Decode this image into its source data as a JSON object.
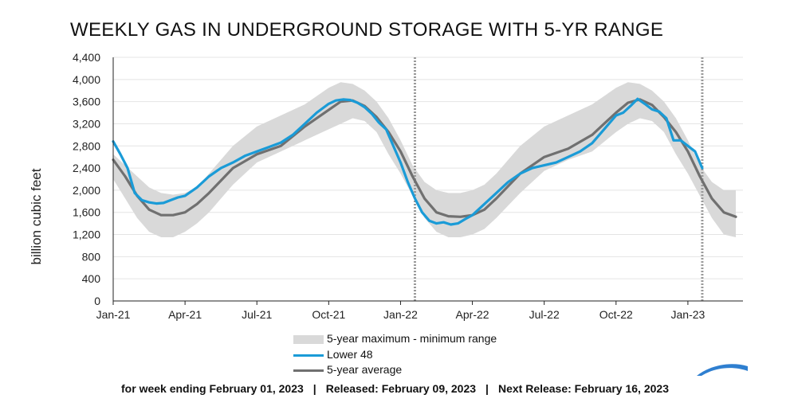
{
  "chart_data": {
    "type": "area+line",
    "title": "WEEKLY GAS IN UNDERGROUND STORAGE WITH 5-YR RANGE",
    "ylabel": "billion cubic feet",
    "ylim": [
      0,
      4400
    ],
    "yticks": [
      0,
      400,
      800,
      1200,
      1600,
      2000,
      2400,
      2800,
      3200,
      3600,
      4000,
      4400
    ],
    "ytick_labels": [
      "0",
      "400",
      "800",
      "1,200",
      "1,600",
      "2,000",
      "2,400",
      "2,800",
      "3,200",
      "3,600",
      "4,000",
      "4,400"
    ],
    "xlim_months": [
      0,
      26.3
    ],
    "xticks": [
      {
        "m": 0,
        "label": "Jan-21"
      },
      {
        "m": 3,
        "label": "Apr-21"
      },
      {
        "m": 6,
        "label": "Jul-21"
      },
      {
        "m": 9,
        "label": "Oct-21"
      },
      {
        "m": 12,
        "label": "Jan-22"
      },
      {
        "m": 15,
        "label": "Apr-22"
      },
      {
        "m": 18,
        "label": "Jul-22"
      },
      {
        "m": 21,
        "label": "Oct-22"
      },
      {
        "m": 24,
        "label": "Jan-23"
      }
    ],
    "vlines_months": [
      12.6,
      24.6
    ],
    "range_months": [
      0,
      0.5,
      1,
      1.5,
      2,
      2.5,
      3,
      3.5,
      4,
      5,
      6,
      7,
      8,
      9,
      9.5,
      10,
      10.5,
      11,
      11.5,
      12,
      12.5,
      13,
      13.5,
      14,
      14.5,
      15,
      15.5,
      16,
      17,
      18,
      19,
      20,
      21,
      21.5,
      22,
      22.5,
      23,
      23.5,
      24,
      24.5,
      25,
      25.5,
      26
    ],
    "range_max": [
      2650,
      2450,
      2250,
      2050,
      1950,
      1920,
      1950,
      2050,
      2300,
      2800,
      3150,
      3350,
      3550,
      3850,
      3950,
      3920,
      3800,
      3600,
      3300,
      2900,
      2450,
      2150,
      2000,
      1950,
      1950,
      2000,
      2100,
      2300,
      2800,
      3150,
      3350,
      3550,
      3850,
      3950,
      3920,
      3800,
      3600,
      3300,
      2900,
      2450,
      2150,
      2000,
      2000
    ],
    "range_min": [
      2200,
      1850,
      1500,
      1250,
      1150,
      1150,
      1250,
      1400,
      1600,
      2100,
      2500,
      2700,
      2900,
      3100,
      3200,
      3300,
      3250,
      3050,
      2650,
      2300,
      1900,
      1500,
      1250,
      1150,
      1150,
      1200,
      1300,
      1500,
      1950,
      2350,
      2550,
      2700,
      3050,
      3200,
      3300,
      3250,
      3050,
      2650,
      2300,
      1900,
      1500,
      1200,
      1150
    ],
    "series": [
      {
        "name": "Lower 48",
        "color": "#1a9bd7",
        "months": [
          0,
          0.3,
          0.6,
          0.9,
          1.2,
          1.5,
          1.8,
          2.1,
          2.4,
          2.7,
          3,
          3.5,
          4,
          4.5,
          5,
          5.5,
          6,
          6.5,
          7,
          7.5,
          8,
          8.5,
          9,
          9.3,
          9.6,
          9.9,
          10.2,
          10.5,
          10.8,
          11.1,
          11.4,
          11.7,
          12,
          12.3,
          12.6,
          12.9,
          13.2,
          13.5,
          13.8,
          14.1,
          14.4,
          14.7,
          15,
          15.5,
          16,
          16.5,
          17,
          17.5,
          18,
          18.5,
          19,
          19.5,
          20,
          20.5,
          21,
          21.3,
          21.6,
          21.9,
          22.2,
          22.5,
          22.8,
          23.1,
          23.4,
          23.7,
          24,
          24.3,
          24.6
        ],
        "values": [
          2880,
          2650,
          2400,
          1950,
          1820,
          1780,
          1760,
          1770,
          1820,
          1870,
          1900,
          2050,
          2250,
          2400,
          2500,
          2620,
          2700,
          2780,
          2860,
          3000,
          3200,
          3400,
          3560,
          3620,
          3640,
          3630,
          3580,
          3500,
          3380,
          3220,
          3100,
          2800,
          2500,
          2150,
          1850,
          1600,
          1450,
          1400,
          1420,
          1380,
          1400,
          1480,
          1550,
          1750,
          1950,
          2150,
          2300,
          2400,
          2450,
          2500,
          2600,
          2700,
          2850,
          3100,
          3350,
          3400,
          3520,
          3650,
          3560,
          3460,
          3420,
          3300,
          2900,
          2900,
          2800,
          2700,
          2400
        ]
      },
      {
        "name": "5-year average",
        "color": "#707070",
        "months": [
          0,
          0.5,
          1,
          1.5,
          2,
          2.5,
          3,
          3.5,
          4,
          5,
          6,
          7,
          8,
          9,
          9.5,
          10,
          10.5,
          11,
          11.5,
          12,
          12.5,
          13,
          13.5,
          14,
          14.5,
          15,
          15.5,
          16,
          17,
          18,
          19,
          20,
          21,
          21.5,
          22,
          22.5,
          23,
          23.5,
          24,
          24.5,
          25,
          25.5,
          26
        ],
        "values": [
          2550,
          2250,
          1900,
          1650,
          1550,
          1550,
          1600,
          1750,
          1950,
          2400,
          2650,
          2800,
          3150,
          3450,
          3600,
          3620,
          3520,
          3320,
          3050,
          2700,
          2250,
          1850,
          1600,
          1530,
          1520,
          1550,
          1650,
          1850,
          2300,
          2600,
          2750,
          3000,
          3400,
          3580,
          3640,
          3540,
          3320,
          3050,
          2700,
          2250,
          1850,
          1600,
          1520
        ]
      }
    ],
    "range_name": "5-year maximum - minimum range",
    "range_color": "#d9d9d9"
  },
  "legend": {
    "range_label": "5-year maximum - minimum range",
    "lower48_label": "Lower 48",
    "avg_label": "5-year average"
  },
  "footer": {
    "week": "for week ending February 01, 2023",
    "released": "Released: February 09, 2023",
    "next": "Next Release: February 16, 2023",
    "separator": "|"
  }
}
